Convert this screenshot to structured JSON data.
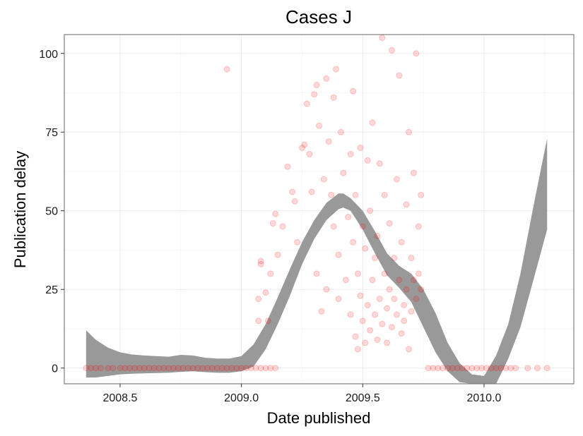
{
  "chart_data": {
    "type": "scatter",
    "title": "Cases J",
    "xlabel": "Date published",
    "ylabel": "Publication delay",
    "xlim": [
      2008.27,
      2010.37
    ],
    "ylim": [
      -5,
      106
    ],
    "x_ticks": [
      2008.5,
      2009.0,
      2009.5,
      2010.0
    ],
    "x_tick_labels": [
      "2008.5",
      "2009.0",
      "2009.5",
      "2010.0"
    ],
    "y_ticks": [
      0,
      25,
      50,
      75,
      100
    ],
    "y_tick_labels": [
      "0",
      "25",
      "50",
      "75",
      "100"
    ],
    "grid": true,
    "legend": "none",
    "colors": {
      "points": "#ff0000",
      "points_alpha": 0.15,
      "smooth_band": "#999999"
    },
    "series": [
      {
        "kind": "points",
        "points": [
          [
            2008.36,
            0
          ],
          [
            2008.38,
            0
          ],
          [
            2008.4,
            0
          ],
          [
            2008.42,
            0
          ],
          [
            2008.45,
            0
          ],
          [
            2008.47,
            0
          ],
          [
            2008.5,
            0
          ],
          [
            2008.52,
            0
          ],
          [
            2008.54,
            0
          ],
          [
            2008.56,
            0
          ],
          [
            2008.58,
            0
          ],
          [
            2008.6,
            0
          ],
          [
            2008.62,
            0
          ],
          [
            2008.64,
            0
          ],
          [
            2008.66,
            0
          ],
          [
            2008.68,
            0
          ],
          [
            2008.7,
            0
          ],
          [
            2008.72,
            0
          ],
          [
            2008.74,
            0
          ],
          [
            2008.76,
            0
          ],
          [
            2008.78,
            0
          ],
          [
            2008.8,
            0
          ],
          [
            2008.82,
            0
          ],
          [
            2008.84,
            0
          ],
          [
            2008.86,
            0
          ],
          [
            2008.88,
            0
          ],
          [
            2008.9,
            0
          ],
          [
            2008.92,
            0
          ],
          [
            2008.94,
            0
          ],
          [
            2008.96,
            0
          ],
          [
            2008.98,
            0
          ],
          [
            2009.0,
            0
          ],
          [
            2009.02,
            0
          ],
          [
            2009.04,
            0
          ],
          [
            2009.06,
            0
          ],
          [
            2009.08,
            0
          ],
          [
            2009.1,
            0
          ],
          [
            2009.12,
            0
          ],
          [
            2009.14,
            0
          ],
          [
            2008.94,
            95
          ],
          [
            2009.07,
            15
          ],
          [
            2009.07,
            22
          ],
          [
            2009.08,
            33
          ],
          [
            2009.08,
            34
          ],
          [
            2009.1,
            24
          ],
          [
            2009.11,
            15
          ],
          [
            2009.12,
            30
          ],
          [
            2009.13,
            46
          ],
          [
            2009.14,
            49
          ],
          [
            2009.15,
            36
          ],
          [
            2009.17,
            45
          ],
          [
            2009.19,
            64
          ],
          [
            2009.21,
            56
          ],
          [
            2009.22,
            53
          ],
          [
            2009.23,
            40
          ],
          [
            2009.25,
            70
          ],
          [
            2009.26,
            71
          ],
          [
            2009.27,
            84
          ],
          [
            2009.28,
            68
          ],
          [
            2009.29,
            56
          ],
          [
            2009.3,
            87
          ],
          [
            2009.31,
            90
          ],
          [
            2009.31,
            30
          ],
          [
            2009.32,
            77
          ],
          [
            2009.33,
            18
          ],
          [
            2009.34,
            60
          ],
          [
            2009.35,
            92
          ],
          [
            2009.35,
            25
          ],
          [
            2009.36,
            72
          ],
          [
            2009.37,
            55
          ],
          [
            2009.38,
            45
          ],
          [
            2009.38,
            86
          ],
          [
            2009.39,
            95
          ],
          [
            2009.4,
            36
          ],
          [
            2009.4,
            22
          ],
          [
            2009.41,
            75
          ],
          [
            2009.42,
            62
          ],
          [
            2009.43,
            28
          ],
          [
            2009.44,
            48
          ],
          [
            2009.45,
            68
          ],
          [
            2009.45,
            17
          ],
          [
            2009.46,
            40
          ],
          [
            2009.46,
            88
          ],
          [
            2009.47,
            10
          ],
          [
            2009.47,
            55
          ],
          [
            2009.48,
            30
          ],
          [
            2009.48,
            6
          ],
          [
            2009.49,
            70
          ],
          [
            2009.49,
            23
          ],
          [
            2009.5,
            15
          ],
          [
            2009.5,
            45
          ],
          [
            2009.51,
            38
          ],
          [
            2009.51,
            8
          ],
          [
            2009.52,
            66
          ],
          [
            2009.52,
            20
          ],
          [
            2009.53,
            50
          ],
          [
            2009.53,
            12
          ],
          [
            2009.54,
            78
          ],
          [
            2009.54,
            28
          ],
          [
            2009.55,
            35
          ],
          [
            2009.55,
            17
          ],
          [
            2009.56,
            9
          ],
          [
            2009.56,
            42
          ],
          [
            2009.57,
            22
          ],
          [
            2009.57,
            65
          ],
          [
            2009.58,
            105
          ],
          [
            2009.58,
            14
          ],
          [
            2009.59,
            30
          ],
          [
            2009.59,
            55
          ],
          [
            2009.6,
            19
          ],
          [
            2009.6,
            8
          ],
          [
            2009.61,
            25
          ],
          [
            2009.61,
            46
          ],
          [
            2009.62,
            101
          ],
          [
            2009.62,
            13
          ],
          [
            2009.63,
            35
          ],
          [
            2009.63,
            22
          ],
          [
            2009.64,
            60
          ],
          [
            2009.64,
            17
          ],
          [
            2009.65,
            28
          ],
          [
            2009.65,
            93
          ],
          [
            2009.66,
            11
          ],
          [
            2009.66,
            40
          ],
          [
            2009.67,
            20
          ],
          [
            2009.67,
            15
          ],
          [
            2009.68,
            52
          ],
          [
            2009.68,
            25
          ],
          [
            2009.69,
            75
          ],
          [
            2009.69,
            6
          ],
          [
            2009.7,
            35
          ],
          [
            2009.7,
            18
          ],
          [
            2009.71,
            62
          ],
          [
            2009.71,
            28
          ],
          [
            2009.72,
            100
          ],
          [
            2009.72,
            22
          ],
          [
            2009.73,
            45
          ],
          [
            2009.73,
            30
          ],
          [
            2009.74,
            25
          ],
          [
            2009.74,
            55
          ],
          [
            2009.77,
            0
          ],
          [
            2009.79,
            0
          ],
          [
            2009.81,
            0
          ],
          [
            2009.83,
            0
          ],
          [
            2009.85,
            0
          ],
          [
            2009.87,
            0
          ],
          [
            2009.89,
            0
          ],
          [
            2009.91,
            0
          ],
          [
            2009.93,
            0
          ],
          [
            2009.95,
            0
          ],
          [
            2009.97,
            0
          ],
          [
            2009.99,
            0
          ],
          [
            2010.01,
            0
          ],
          [
            2010.03,
            0
          ],
          [
            2010.05,
            0
          ],
          [
            2010.07,
            0
          ],
          [
            2010.09,
            0
          ],
          [
            2010.11,
            0
          ],
          [
            2010.13,
            0
          ],
          [
            2010.18,
            0
          ],
          [
            2010.22,
            0
          ],
          [
            2010.26,
            0
          ]
        ]
      },
      {
        "kind": "smooth-band",
        "x": [
          2008.36,
          2008.4,
          2008.45,
          2008.5,
          2008.55,
          2008.6,
          2008.65,
          2008.7,
          2008.75,
          2008.8,
          2008.85,
          2008.9,
          2008.95,
          2009.0,
          2009.05,
          2009.1,
          2009.15,
          2009.2,
          2009.25,
          2009.3,
          2009.35,
          2009.4,
          2009.42,
          2009.45,
          2009.5,
          2009.55,
          2009.6,
          2009.65,
          2009.7,
          2009.75,
          2009.8,
          2009.85,
          2009.9,
          2009.95,
          2010.0,
          2010.05,
          2010.1,
          2010.15,
          2010.2,
          2010.26
        ],
        "upper": [
          12,
          9,
          6.5,
          5,
          4.3,
          4,
          3.8,
          3.6,
          4.2,
          4.0,
          3.3,
          3.0,
          3.0,
          3.8,
          7.5,
          14,
          22.5,
          31.5,
          40,
          47,
          52.5,
          55.5,
          55.5,
          54,
          50,
          43.5,
          36.5,
          32.5,
          30,
          25,
          17.5,
          8,
          1.5,
          -2,
          -2.5,
          4,
          14,
          30,
          50,
          73
        ],
        "lower": [
          -3,
          -3,
          -2.5,
          -2,
          -1.8,
          -1.7,
          -1.6,
          -1.5,
          -1.2,
          -1.0,
          -1.3,
          -1.5,
          -1.5,
          -1.0,
          0.5,
          6,
          14,
          23,
          33,
          41,
          47,
          50.5,
          51,
          50,
          44,
          36.5,
          29.5,
          25.5,
          21,
          13,
          5,
          -1,
          -4.5,
          -5,
          -5.5,
          -5,
          3,
          13,
          27,
          44
        ]
      }
    ]
  }
}
